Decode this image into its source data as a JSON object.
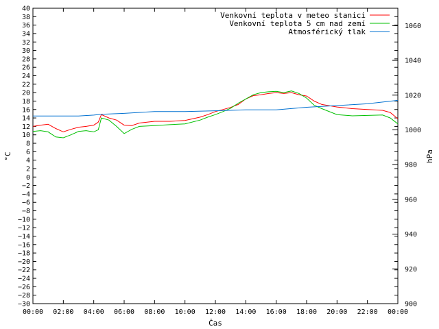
{
  "chart_data": {
    "type": "line",
    "xlabel": "Čas",
    "ylabel": "°C",
    "y2label": "hPa",
    "xlim": [
      0,
      24
    ],
    "ylim": [
      -30,
      40
    ],
    "y2lim": [
      900,
      1070
    ],
    "x_ticks": [
      "00:00",
      "02:00",
      "04:00",
      "06:00",
      "08:00",
      "10:00",
      "12:00",
      "14:00",
      "16:00",
      "18:00",
      "20:00",
      "22:00",
      "00:00"
    ],
    "y_ticks": [
      40,
      38,
      36,
      34,
      32,
      30,
      28,
      26,
      24,
      22,
      20,
      18,
      16,
      14,
      12,
      10,
      8,
      6,
      4,
      2,
      0,
      -2,
      -4,
      -6,
      -8,
      -10,
      -12,
      -14,
      -16,
      -18,
      -20,
      -22,
      -24,
      -26,
      -28,
      -30
    ],
    "y2_ticks": [
      1060,
      1040,
      1020,
      1000,
      980,
      960,
      940,
      920,
      900
    ],
    "legend_position": "top-right",
    "grid": false,
    "series": [
      {
        "name": "Venkovní teplota v meteo stanici",
        "axis": "y",
        "color": "#ff0000",
        "x": [
          0,
          0.5,
          1,
          1.5,
          2,
          2.5,
          3,
          3.5,
          4,
          4.3,
          4.5,
          5,
          5.5,
          6,
          6.5,
          7,
          8,
          9,
          10,
          11,
          11.5,
          12,
          12.5,
          13,
          13.5,
          14,
          14.5,
          15,
          15.5,
          16,
          16.5,
          17,
          17.5,
          18,
          18.5,
          19,
          20,
          21,
          22,
          23,
          23.5,
          24
        ],
        "y": [
          12,
          12.3,
          12.5,
          11.5,
          10.7,
          11.3,
          11.8,
          12,
          12.3,
          13,
          14.8,
          14,
          13.5,
          12.3,
          12.2,
          12.8,
          13.2,
          13.2,
          13.4,
          14.2,
          14.8,
          15.5,
          16,
          16.5,
          17.2,
          18.5,
          19.3,
          19.5,
          19.8,
          20,
          19.8,
          20,
          19.5,
          19.2,
          18,
          17.2,
          16.6,
          16.2,
          16,
          15.8,
          15.3,
          13.8
        ]
      },
      {
        "name": "Venkovní teplota 5 cm nad zemí",
        "axis": "y",
        "color": "#00c000",
        "x": [
          0,
          0.5,
          1,
          1.5,
          2,
          2.5,
          3,
          3.5,
          4,
          4.3,
          4.5,
          5,
          5.5,
          6,
          6.5,
          7,
          8,
          9,
          10,
          11,
          11.5,
          12,
          12.5,
          13,
          13.5,
          14,
          14.5,
          15,
          15.5,
          16,
          16.5,
          17,
          17.5,
          18,
          18.5,
          19,
          20,
          21,
          22,
          23,
          23.5,
          24
        ],
        "y": [
          10.8,
          11,
          10.7,
          9.5,
          9.3,
          10,
          10.8,
          11,
          10.7,
          11.2,
          14,
          13.5,
          12,
          10.3,
          11.3,
          12,
          12.2,
          12.4,
          12.6,
          13.5,
          14.2,
          14.8,
          15.5,
          16.3,
          17.5,
          18.5,
          19.5,
          20,
          20.2,
          20.3,
          20,
          20.4,
          19.8,
          18.7,
          17,
          16.2,
          14.8,
          14.5,
          14.6,
          14.7,
          14,
          12.6
        ]
      },
      {
        "name": "Atmosférický tlak",
        "axis": "y2",
        "color": "#0070d0",
        "x": [
          0,
          2,
          3,
          4,
          4.5,
          6,
          8,
          10,
          12,
          14,
          16,
          18,
          20,
          22,
          24
        ],
        "y": [
          1008,
          1008,
          1008,
          1008.5,
          1009,
          1009.5,
          1010.5,
          1010.5,
          1011,
          1011.5,
          1011.5,
          1013,
          1014,
          1015,
          1017
        ]
      }
    ]
  }
}
